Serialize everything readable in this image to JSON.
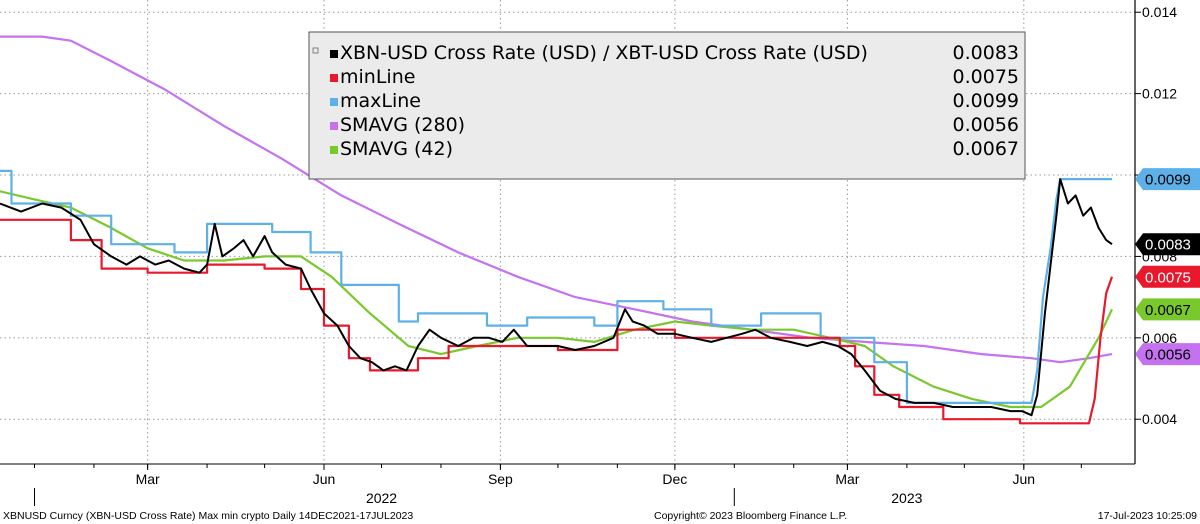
{
  "chart_data": {
    "type": "line",
    "title": "",
    "xlabel": "",
    "ylabel": "",
    "x_range": [
      "2021-12-14",
      "2023-07-17"
    ],
    "ylim": [
      0.0029,
      0.0143
    ],
    "y_ticks": [
      0.004,
      0.006,
      0.008,
      0.01,
      0.012,
      0.014
    ],
    "y_tick_labels": [
      "0.004",
      "0.006",
      "0.008",
      "0.010",
      "0.012",
      "0.014"
    ],
    "x_ticks": [
      {
        "date": "2022-03-01",
        "label": "Mar"
      },
      {
        "date": "2022-06-01",
        "label": "Jun"
      },
      {
        "date": "2022-09-01",
        "label": "Sep"
      },
      {
        "date": "2022-12-01",
        "label": "Dec"
      },
      {
        "date": "2023-03-01",
        "label": "Mar"
      },
      {
        "date": "2023-06-01",
        "label": "Jun"
      }
    ],
    "year_labels": [
      {
        "date": "2022-07-01",
        "label": "2022"
      },
      {
        "date": "2023-04-01",
        "label": "2023"
      }
    ],
    "grid": true,
    "legend_position": "top-center",
    "series": [
      {
        "name": "XBN-USD Cross Rate (USD) / XBT-USD Cross Rate (USD)",
        "legend_value": "0.0083",
        "color": "#000000",
        "end_value": 0.0083,
        "points": [
          [
            "2021-12-14",
            0.0093
          ],
          [
            "2021-12-25",
            0.0091
          ],
          [
            "2022-01-05",
            0.0093
          ],
          [
            "2022-01-15",
            0.0092
          ],
          [
            "2022-01-25",
            0.0089
          ],
          [
            "2022-02-01",
            0.0083
          ],
          [
            "2022-02-10",
            0.008
          ],
          [
            "2022-02-18",
            0.0078
          ],
          [
            "2022-02-25",
            0.008
          ],
          [
            "2022-03-05",
            0.0078
          ],
          [
            "2022-03-12",
            0.0079
          ],
          [
            "2022-03-20",
            0.0077
          ],
          [
            "2022-03-28",
            0.0076
          ],
          [
            "2022-04-01",
            0.0078
          ],
          [
            "2022-04-05",
            0.0088
          ],
          [
            "2022-04-09",
            0.008
          ],
          [
            "2022-04-15",
            0.0082
          ],
          [
            "2022-04-20",
            0.0084
          ],
          [
            "2022-04-25",
            0.008
          ],
          [
            "2022-05-01",
            0.0085
          ],
          [
            "2022-05-05",
            0.0081
          ],
          [
            "2022-05-12",
            0.0078
          ],
          [
            "2022-05-20",
            0.0077
          ],
          [
            "2022-05-25",
            0.0072
          ],
          [
            "2022-06-01",
            0.0066
          ],
          [
            "2022-06-08",
            0.0063
          ],
          [
            "2022-06-14",
            0.0058
          ],
          [
            "2022-06-20",
            0.0055
          ],
          [
            "2022-06-26",
            0.0054
          ],
          [
            "2022-07-02",
            0.0052
          ],
          [
            "2022-07-08",
            0.0053
          ],
          [
            "2022-07-14",
            0.0052
          ],
          [
            "2022-07-20",
            0.0058
          ],
          [
            "2022-07-26",
            0.0062
          ],
          [
            "2022-08-01",
            0.006
          ],
          [
            "2022-08-10",
            0.0058
          ],
          [
            "2022-08-18",
            0.006
          ],
          [
            "2022-08-26",
            0.006
          ],
          [
            "2022-09-02",
            0.0059
          ],
          [
            "2022-09-08",
            0.0062
          ],
          [
            "2022-09-15",
            0.0058
          ],
          [
            "2022-09-22",
            0.0058
          ],
          [
            "2022-10-01",
            0.0058
          ],
          [
            "2022-10-10",
            0.0057
          ],
          [
            "2022-10-20",
            0.0058
          ],
          [
            "2022-10-30",
            0.006
          ],
          [
            "2022-11-05",
            0.0067
          ],
          [
            "2022-11-09",
            0.0064
          ],
          [
            "2022-11-15",
            0.0063
          ],
          [
            "2022-11-22",
            0.0061
          ],
          [
            "2022-12-01",
            0.0061
          ],
          [
            "2022-12-10",
            0.006
          ],
          [
            "2022-12-20",
            0.0059
          ],
          [
            "2022-12-28",
            0.006
          ],
          [
            "2023-01-05",
            0.0061
          ],
          [
            "2023-01-12",
            0.0062
          ],
          [
            "2023-01-20",
            0.006
          ],
          [
            "2023-01-30",
            0.0059
          ],
          [
            "2023-02-08",
            0.0058
          ],
          [
            "2023-02-16",
            0.0059
          ],
          [
            "2023-02-24",
            0.0058
          ],
          [
            "2023-03-03",
            0.0056
          ],
          [
            "2023-03-10",
            0.0052
          ],
          [
            "2023-03-18",
            0.0047
          ],
          [
            "2023-03-26",
            0.0045
          ],
          [
            "2023-04-05",
            0.0044
          ],
          [
            "2023-04-15",
            0.0044
          ],
          [
            "2023-04-25",
            0.0043
          ],
          [
            "2023-05-05",
            0.0043
          ],
          [
            "2023-05-15",
            0.0043
          ],
          [
            "2023-05-25",
            0.0042
          ],
          [
            "2023-05-31",
            0.0042
          ],
          [
            "2023-06-05",
            0.0041
          ],
          [
            "2023-06-08",
            0.0046
          ],
          [
            "2023-06-12",
            0.0066
          ],
          [
            "2023-06-15",
            0.0078
          ],
          [
            "2023-06-18",
            0.009
          ],
          [
            "2023-06-20",
            0.0099
          ],
          [
            "2023-06-24",
            0.0093
          ],
          [
            "2023-06-28",
            0.0095
          ],
          [
            "2023-07-02",
            0.009
          ],
          [
            "2023-07-06",
            0.0092
          ],
          [
            "2023-07-10",
            0.0087
          ],
          [
            "2023-07-14",
            0.0084
          ],
          [
            "2023-07-17",
            0.0083
          ]
        ]
      },
      {
        "name": "minLine",
        "legend_value": "0.0075",
        "color": "#e8192c",
        "end_value": 0.0075,
        "points": [
          [
            "2021-12-14",
            0.0089
          ],
          [
            "2022-01-20",
            0.0089
          ],
          [
            "2022-01-20",
            0.0084
          ],
          [
            "2022-02-05",
            0.0084
          ],
          [
            "2022-02-05",
            0.0077
          ],
          [
            "2022-03-01",
            0.0077
          ],
          [
            "2022-03-01",
            0.0076
          ],
          [
            "2022-04-01",
            0.0076
          ],
          [
            "2022-04-01",
            0.0078
          ],
          [
            "2022-05-01",
            0.0078
          ],
          [
            "2022-05-01",
            0.0077
          ],
          [
            "2022-05-20",
            0.0077
          ],
          [
            "2022-05-20",
            0.0072
          ],
          [
            "2022-06-01",
            0.0072
          ],
          [
            "2022-06-01",
            0.0063
          ],
          [
            "2022-06-14",
            0.0063
          ],
          [
            "2022-06-14",
            0.0055
          ],
          [
            "2022-06-25",
            0.0055
          ],
          [
            "2022-06-25",
            0.0052
          ],
          [
            "2022-07-20",
            0.0052
          ],
          [
            "2022-07-20",
            0.0055
          ],
          [
            "2022-08-05",
            0.0055
          ],
          [
            "2022-08-05",
            0.0058
          ],
          [
            "2022-10-01",
            0.0058
          ],
          [
            "2022-10-01",
            0.0057
          ],
          [
            "2022-11-01",
            0.0057
          ],
          [
            "2022-11-01",
            0.0062
          ],
          [
            "2022-12-01",
            0.0062
          ],
          [
            "2022-12-01",
            0.006
          ],
          [
            "2023-02-25",
            0.006
          ],
          [
            "2023-02-25",
            0.0058
          ],
          [
            "2023-03-05",
            0.0058
          ],
          [
            "2023-03-05",
            0.0053
          ],
          [
            "2023-03-15",
            0.0053
          ],
          [
            "2023-03-15",
            0.0046
          ],
          [
            "2023-03-28",
            0.0046
          ],
          [
            "2023-03-28",
            0.0043
          ],
          [
            "2023-04-20",
            0.0043
          ],
          [
            "2023-04-20",
            0.004
          ],
          [
            "2023-05-30",
            0.004
          ],
          [
            "2023-05-30",
            0.0039
          ],
          [
            "2023-07-05",
            0.0039
          ],
          [
            "2023-07-08",
            0.0045
          ],
          [
            "2023-07-11",
            0.006
          ],
          [
            "2023-07-14",
            0.0071
          ],
          [
            "2023-07-17",
            0.0075
          ]
        ]
      },
      {
        "name": "maxLine",
        "legend_value": "0.0099",
        "color": "#5eb0e8",
        "end_value": 0.0099,
        "points": [
          [
            "2021-12-14",
            0.0101
          ],
          [
            "2021-12-20",
            0.0101
          ],
          [
            "2021-12-20",
            0.0093
          ],
          [
            "2022-01-20",
            0.0093
          ],
          [
            "2022-01-20",
            0.009
          ],
          [
            "2022-02-10",
            0.009
          ],
          [
            "2022-02-10",
            0.0083
          ],
          [
            "2022-03-15",
            0.0083
          ],
          [
            "2022-03-15",
            0.0081
          ],
          [
            "2022-04-01",
            0.0081
          ],
          [
            "2022-04-01",
            0.0088
          ],
          [
            "2022-05-05",
            0.0088
          ],
          [
            "2022-05-05",
            0.0086
          ],
          [
            "2022-05-25",
            0.0086
          ],
          [
            "2022-05-25",
            0.0081
          ],
          [
            "2022-06-10",
            0.0081
          ],
          [
            "2022-06-10",
            0.0073
          ],
          [
            "2022-07-10",
            0.0073
          ],
          [
            "2022-07-10",
            0.0064
          ],
          [
            "2022-07-20",
            0.0064
          ],
          [
            "2022-07-20",
            0.0066
          ],
          [
            "2022-08-25",
            0.0066
          ],
          [
            "2022-08-25",
            0.0063
          ],
          [
            "2022-09-15",
            0.0063
          ],
          [
            "2022-09-15",
            0.0065
          ],
          [
            "2022-10-20",
            0.0065
          ],
          [
            "2022-10-20",
            0.0063
          ],
          [
            "2022-11-01",
            0.0063
          ],
          [
            "2022-11-01",
            0.0069
          ],
          [
            "2022-11-25",
            0.0069
          ],
          [
            "2022-11-25",
            0.0067
          ],
          [
            "2022-12-20",
            0.0067
          ],
          [
            "2022-12-20",
            0.0063
          ],
          [
            "2023-01-15",
            0.0063
          ],
          [
            "2023-01-15",
            0.0066
          ],
          [
            "2023-02-15",
            0.0066
          ],
          [
            "2023-02-15",
            0.006
          ],
          [
            "2023-03-15",
            0.006
          ],
          [
            "2023-03-15",
            0.0054
          ],
          [
            "2023-04-01",
            0.0054
          ],
          [
            "2023-04-01",
            0.0044
          ],
          [
            "2023-06-05",
            0.0044
          ],
          [
            "2023-06-08",
            0.0052
          ],
          [
            "2023-06-11",
            0.007
          ],
          [
            "2023-06-15",
            0.0082
          ],
          [
            "2023-06-18",
            0.0094
          ],
          [
            "2023-06-20",
            0.0099
          ],
          [
            "2023-07-17",
            0.0099
          ]
        ]
      },
      {
        "name": "SMAVG (280)",
        "legend_value": "0.0056",
        "color": "#c472f0",
        "end_value": 0.0056,
        "points": [
          [
            "2021-12-14",
            0.0134
          ],
          [
            "2022-01-05",
            0.0134
          ],
          [
            "2022-01-20",
            0.0133
          ],
          [
            "2022-02-10",
            0.0128
          ],
          [
            "2022-03-10",
            0.0121
          ],
          [
            "2022-04-10",
            0.0112
          ],
          [
            "2022-05-10",
            0.0104
          ],
          [
            "2022-06-10",
            0.0095
          ],
          [
            "2022-07-10",
            0.0088
          ],
          [
            "2022-08-10",
            0.0081
          ],
          [
            "2022-09-10",
            0.0075
          ],
          [
            "2022-10-10",
            0.007
          ],
          [
            "2022-11-10",
            0.0067
          ],
          [
            "2022-12-10",
            0.0064
          ],
          [
            "2023-01-10",
            0.0062
          ],
          [
            "2023-02-10",
            0.006
          ],
          [
            "2023-03-10",
            0.0059
          ],
          [
            "2023-04-10",
            0.0058
          ],
          [
            "2023-05-10",
            0.0056
          ],
          [
            "2023-06-05",
            0.0055
          ],
          [
            "2023-06-20",
            0.0054
          ],
          [
            "2023-07-05",
            0.0055
          ],
          [
            "2023-07-17",
            0.0056
          ]
        ]
      },
      {
        "name": "SMAVG (42)",
        "legend_value": "0.0067",
        "color": "#7ac92c",
        "end_value": 0.0067,
        "points": [
          [
            "2021-12-14",
            0.0096
          ],
          [
            "2022-01-01",
            0.0094
          ],
          [
            "2022-01-20",
            0.0092
          ],
          [
            "2022-02-10",
            0.0087
          ],
          [
            "2022-03-01",
            0.0082
          ],
          [
            "2022-03-20",
            0.0079
          ],
          [
            "2022-04-10",
            0.0079
          ],
          [
            "2022-05-01",
            0.008
          ],
          [
            "2022-05-20",
            0.008
          ],
          [
            "2022-06-05",
            0.0075
          ],
          [
            "2022-06-25",
            0.0066
          ],
          [
            "2022-07-15",
            0.0058
          ],
          [
            "2022-08-01",
            0.0056
          ],
          [
            "2022-08-20",
            0.0058
          ],
          [
            "2022-09-10",
            0.006
          ],
          [
            "2022-10-01",
            0.006
          ],
          [
            "2022-10-20",
            0.0059
          ],
          [
            "2022-11-10",
            0.0062
          ],
          [
            "2022-12-01",
            0.0064
          ],
          [
            "2022-12-20",
            0.0063
          ],
          [
            "2023-01-10",
            0.0062
          ],
          [
            "2023-02-01",
            0.0062
          ],
          [
            "2023-02-20",
            0.006
          ],
          [
            "2023-03-10",
            0.0058
          ],
          [
            "2023-03-25",
            0.0053
          ],
          [
            "2023-04-15",
            0.0048
          ],
          [
            "2023-05-05",
            0.0045
          ],
          [
            "2023-05-25",
            0.0043
          ],
          [
            "2023-06-10",
            0.0043
          ],
          [
            "2023-06-25",
            0.0048
          ],
          [
            "2023-07-10",
            0.006
          ],
          [
            "2023-07-17",
            0.0067
          ]
        ]
      }
    ],
    "footer": {
      "left": "XBNUSD Curncy (XBN-USD Cross Rate) Max min crypto  Daily 14DEC2021-17JUL2023",
      "center": "Copyright© 2023 Bloomberg Finance L.P.",
      "right": "17-Jul-2023 10:25:09"
    }
  }
}
